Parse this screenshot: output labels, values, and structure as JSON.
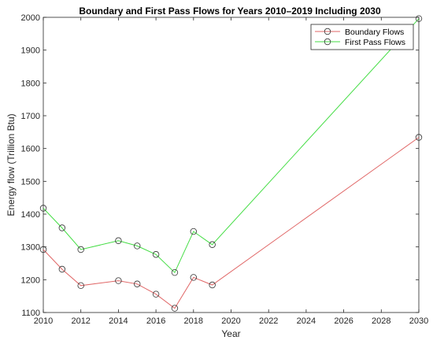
{
  "chart_data": {
    "type": "line",
    "title": "Boundary and First Pass Flows for Years 2010–2019 Including 2030",
    "xlabel": "Year",
    "ylabel": "Energy flow (Trillion Btu)",
    "xlim": [
      2010,
      2030
    ],
    "ylim": [
      1100,
      2000
    ],
    "xticks": [
      2010,
      2012,
      2014,
      2016,
      2018,
      2020,
      2022,
      2024,
      2026,
      2028,
      2030
    ],
    "yticks": [
      1100,
      1200,
      1300,
      1400,
      1500,
      1600,
      1700,
      1800,
      1900,
      2000
    ],
    "grid": false,
    "legend_position": "top-right",
    "marker": "open-circle",
    "series": [
      {
        "name": "Boundary Flows",
        "color": "#e06666",
        "x": [
          2010,
          2011,
          2012,
          2014,
          2015,
          2016,
          2017,
          2018,
          2019,
          2030
        ],
        "y": [
          1292,
          1232,
          1182,
          1197,
          1187,
          1156,
          1113,
          1207,
          1184,
          1634
        ]
      },
      {
        "name": "First Pass Flows",
        "color": "#44dd44",
        "x": [
          2010,
          2011,
          2012,
          2014,
          2015,
          2016,
          2017,
          2018,
          2019,
          2030
        ],
        "y": [
          1418,
          1358,
          1292,
          1319,
          1303,
          1277,
          1222,
          1347,
          1307,
          1996
        ]
      }
    ]
  }
}
